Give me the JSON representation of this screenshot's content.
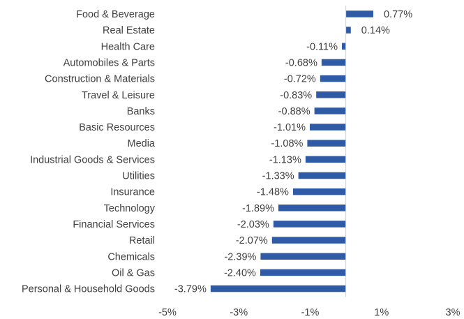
{
  "chart_data": {
    "type": "bar",
    "orientation": "horizontal",
    "title": "",
    "xlabel": "",
    "ylabel": "",
    "categories": [
      "Food & Beverage",
      "Real Estate",
      "Health Care",
      "Automobiles & Parts",
      "Construction & Materials",
      "Travel & Leisure",
      "Banks",
      "Basic Resources",
      "Media",
      "Industrial Goods & Services",
      "Utilities",
      "Insurance",
      "Technology",
      "Financial Services",
      "Retail",
      "Chemicals",
      "Oil & Gas",
      "Personal & Household Goods"
    ],
    "values": [
      0.77,
      0.14,
      -0.11,
      -0.68,
      -0.72,
      -0.83,
      -0.88,
      -1.01,
      -1.08,
      -1.13,
      -1.33,
      -1.48,
      -1.89,
      -2.03,
      -2.07,
      -2.39,
      -2.4,
      -3.79
    ],
    "value_labels": [
      "0.77%",
      "0.14%",
      "-0.11%",
      "-0.68%",
      "-0.72%",
      "-0.83%",
      "-0.88%",
      "-1.01%",
      "-1.08%",
      "-1.13%",
      "-1.33%",
      "-1.48%",
      "-1.89%",
      "-2.03%",
      "-2.07%",
      "-2.39%",
      "-2.40%",
      "-3.79%"
    ],
    "xlim": [
      -5,
      3
    ],
    "xticks": [
      -5,
      -3,
      -1,
      1,
      3
    ],
    "xtick_labels": [
      "-5%",
      "-3%",
      "-1%",
      "1%",
      "3%"
    ],
    "grid": false,
    "legend": "none",
    "bar_color": "#2f5aa6"
  }
}
